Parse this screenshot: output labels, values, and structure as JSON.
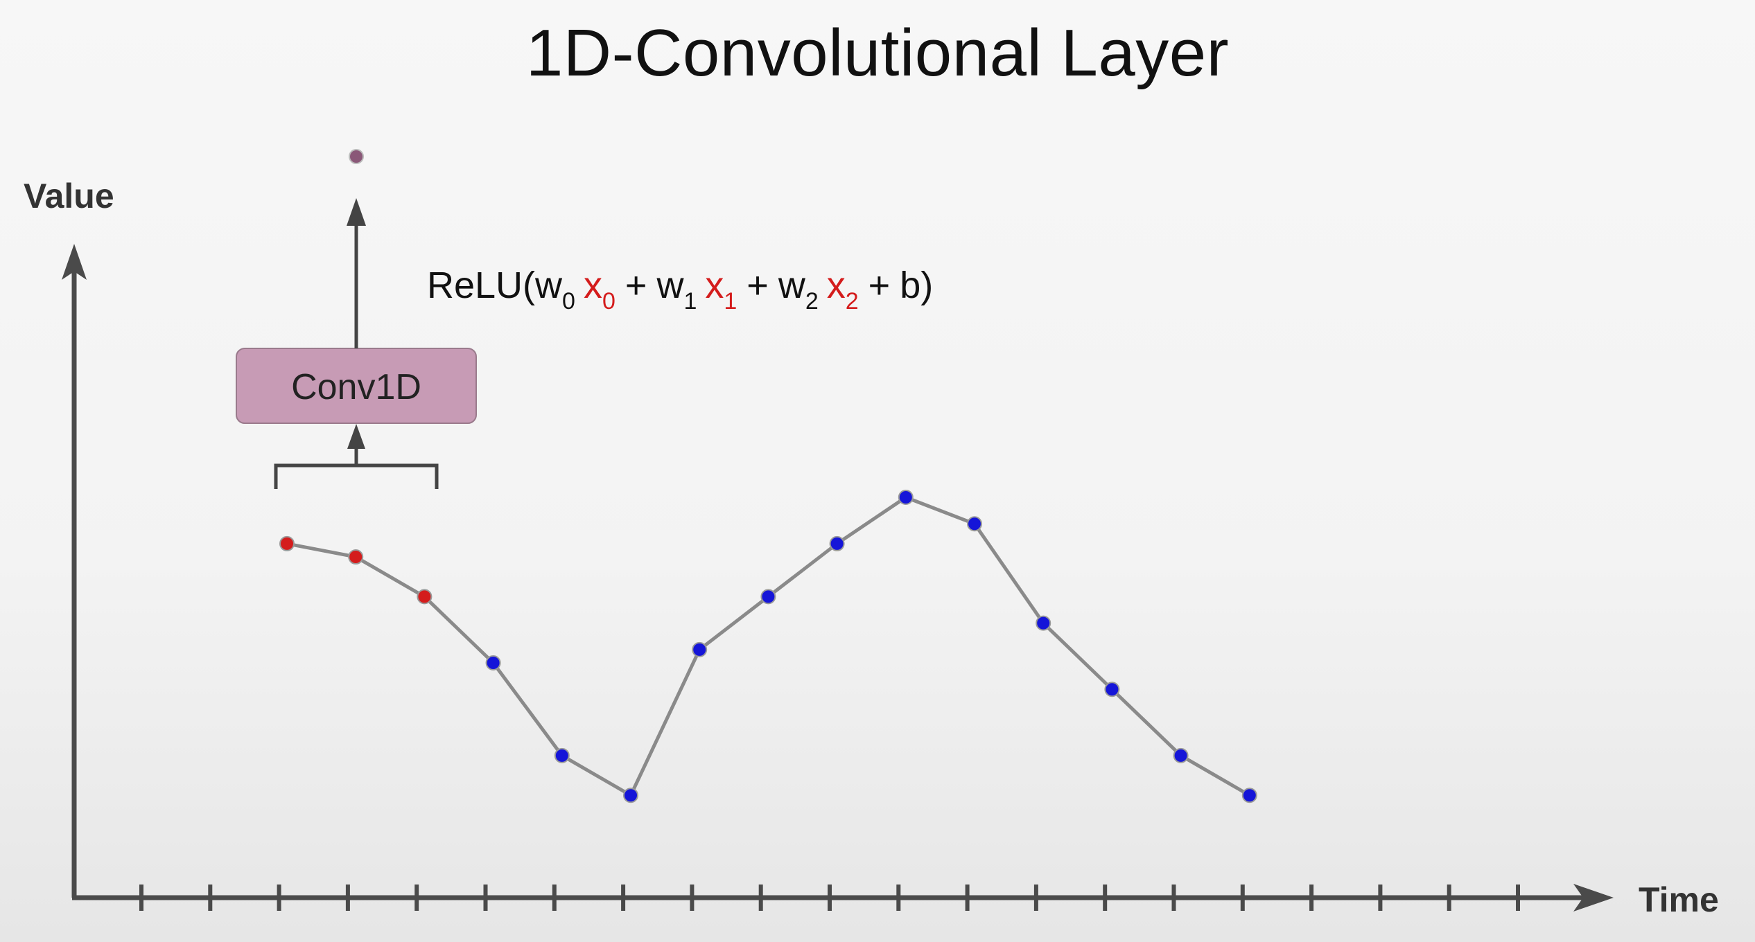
{
  "title": "1D-Convolutional Layer",
  "axes": {
    "y_label": "Value",
    "x_label": "Time",
    "x_tick_count": 21
  },
  "conv_box": {
    "label": "Conv1D",
    "fill": "#c79bb5"
  },
  "formula": {
    "prefix": "ReLU(",
    "terms": [
      {
        "weight": "w",
        "weight_sub": "0",
        "input": "x",
        "input_sub": "0"
      },
      {
        "weight": "w",
        "weight_sub": "1",
        "input": "x",
        "input_sub": "1"
      },
      {
        "weight": "w",
        "weight_sub": "2",
        "input": "x",
        "input_sub": "2"
      }
    ],
    "plus": "+",
    "bias": "b",
    "suffix": ")"
  },
  "series": {
    "values": [
      0.86,
      0.82,
      0.7,
      0.5,
      0.22,
      0.1,
      0.54,
      0.7,
      0.86,
      1.0,
      0.92,
      0.62,
      0.42,
      0.22,
      0.1
    ],
    "window_size": 3,
    "colors": {
      "line": "#8a8a8a",
      "point": "#1515d8",
      "window_point": "#d41c1c",
      "output_point": "#8a5878",
      "axis": "#4a4a4a"
    }
  }
}
